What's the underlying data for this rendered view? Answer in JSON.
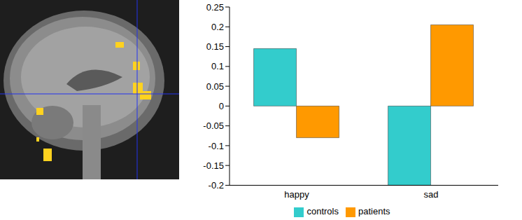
{
  "chart_data": {
    "type": "bar",
    "categories": [
      "happy",
      "sad"
    ],
    "series": [
      {
        "name": "controls",
        "color": "#33cccc",
        "values": [
          0.145,
          -0.2
        ]
      },
      {
        "name": "patients",
        "color": "#ff9900",
        "values": [
          -0.08,
          0.205
        ]
      }
    ],
    "ylim": [
      -0.2,
      0.25
    ],
    "yticks": [
      -0.2,
      -0.15,
      -0.1,
      -0.05,
      0,
      0.05,
      0.1,
      0.15,
      0.2,
      0.25
    ],
    "grid": false,
    "legend": "bottom"
  }
}
